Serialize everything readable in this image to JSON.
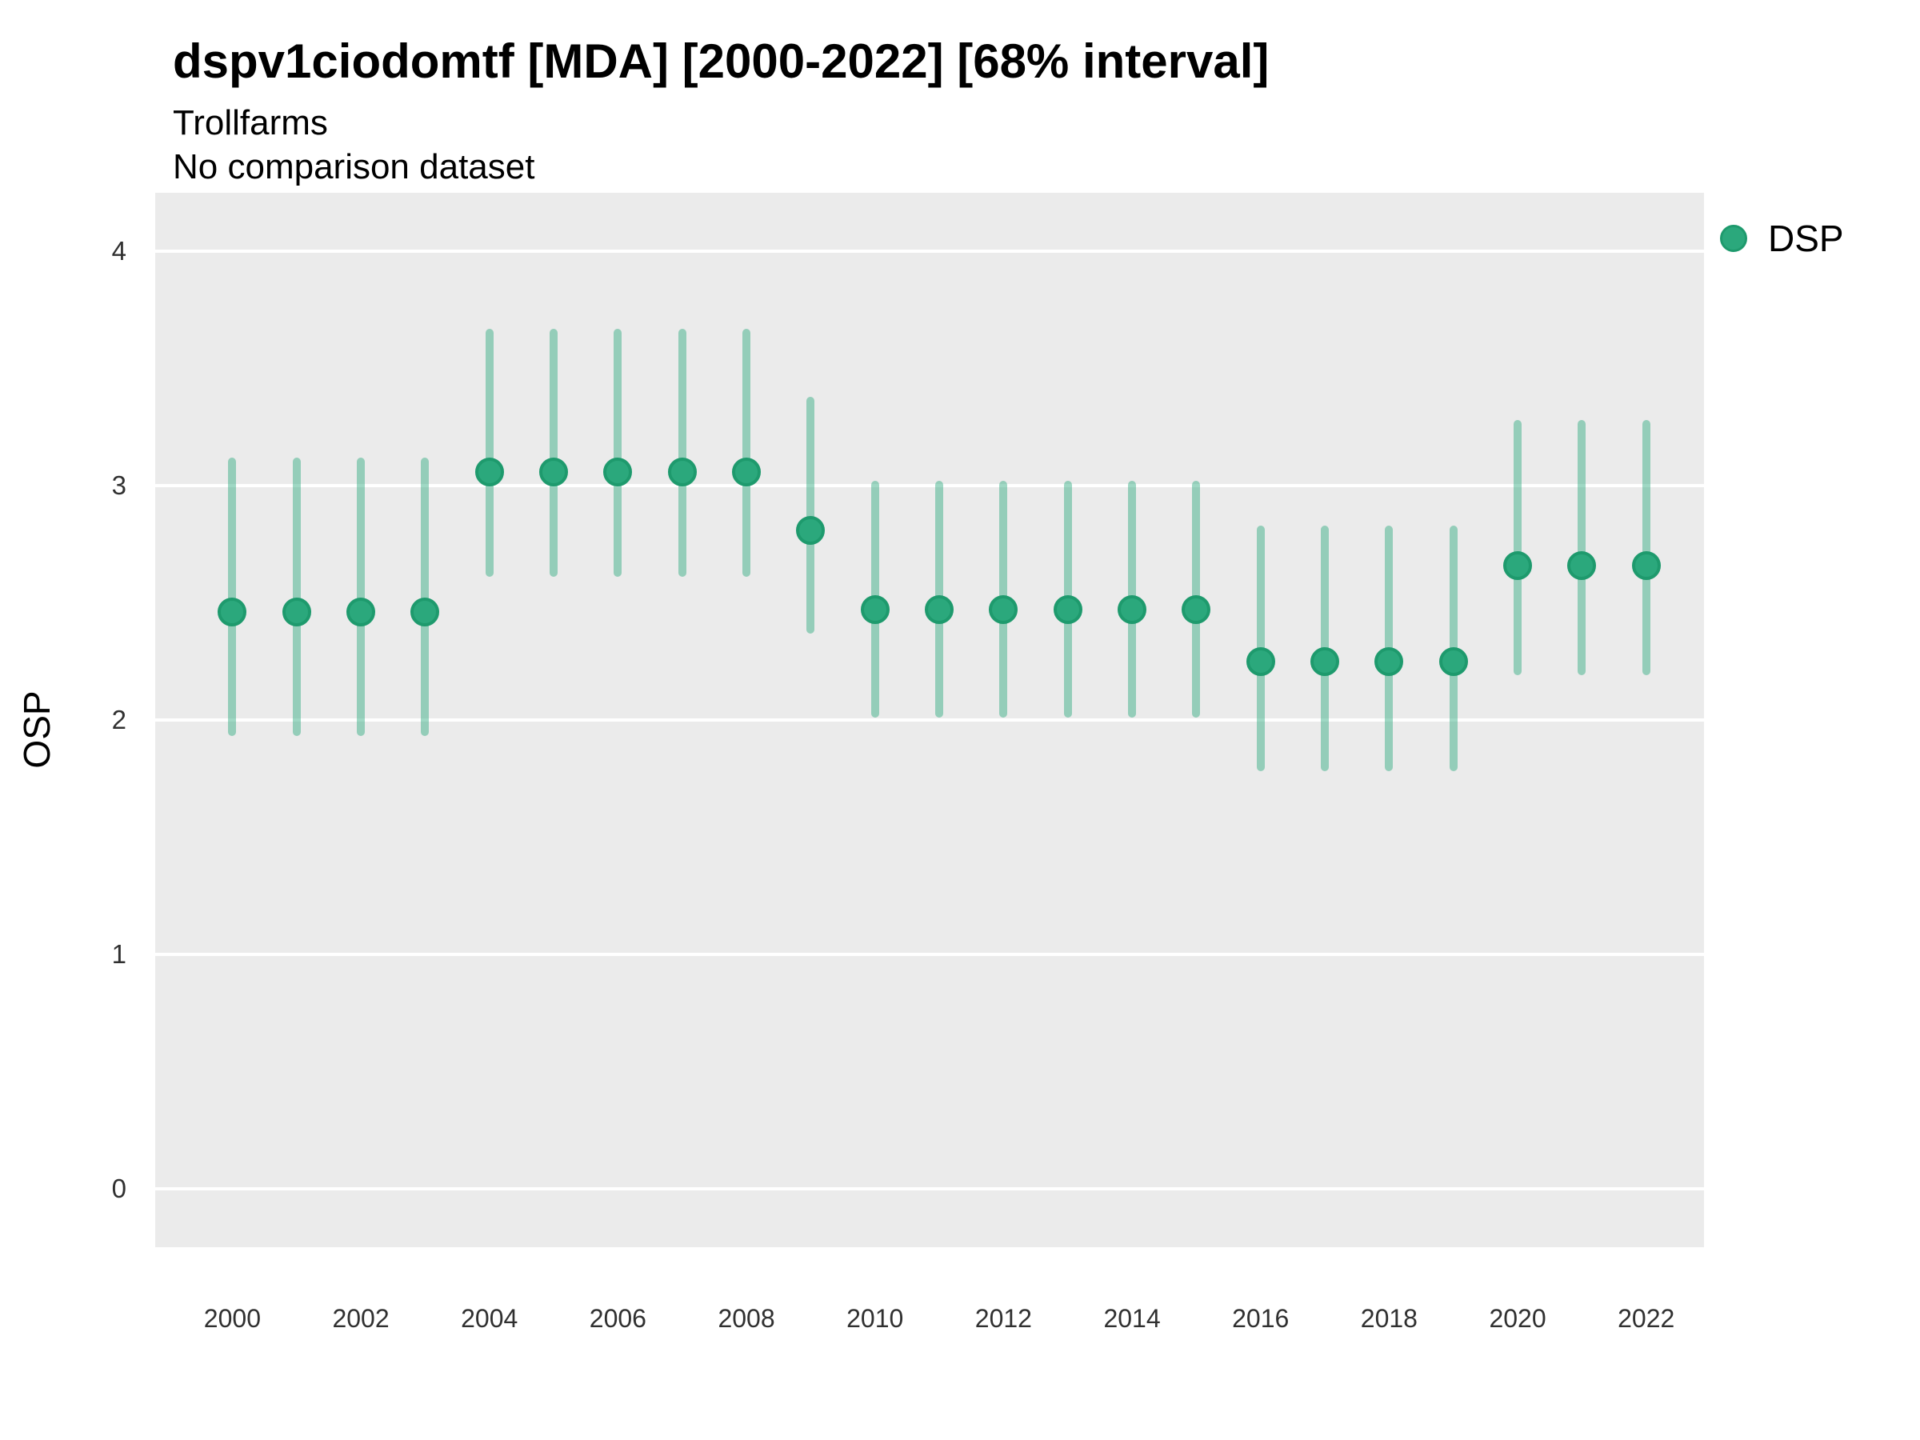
{
  "title": "dspv1ciodomtf [MDA] [2000-2022] [68% interval]",
  "subtitle": "Trollfarms",
  "comparison_note": "No comparison dataset",
  "y_axis_title": "OSP",
  "legend": {
    "label": "DSP",
    "position": "right"
  },
  "colors": {
    "point_fill": "#2ba87c",
    "point_stroke": "#1e9a6d",
    "interval_bar": "rgba(43,168,124,0.45)",
    "panel_background": "#ebebeb",
    "gridline": "#ffffff",
    "title_text": "#000000",
    "tick_text": "#303030"
  },
  "chart_data": {
    "type": "scatter",
    "title": "dspv1ciodomtf [MDA] [2000-2022] [68% interval]",
    "subtitle": "Trollfarms",
    "note": "No comparison dataset",
    "xlabel": "",
    "ylabel": "OSP",
    "interval_label": "68% interval",
    "grid": "horizontal-major-only",
    "legend_position": "right",
    "xlim": [
      1998.8,
      2022.9
    ],
    "ylim": [
      -0.25,
      4.25
    ],
    "x_ticks": [
      2000,
      2002,
      2004,
      2006,
      2008,
      2010,
      2012,
      2014,
      2016,
      2018,
      2020,
      2022
    ],
    "y_ticks": [
      0,
      1,
      2,
      3,
      4
    ],
    "x": [
      2000,
      2001,
      2002,
      2003,
      2004,
      2005,
      2006,
      2007,
      2008,
      2009,
      2010,
      2011,
      2012,
      2013,
      2014,
      2015,
      2016,
      2017,
      2018,
      2019,
      2020,
      2021,
      2022
    ],
    "series": [
      {
        "name": "DSP",
        "values": [
          2.46,
          2.46,
          2.46,
          2.46,
          3.06,
          3.06,
          3.06,
          3.06,
          3.06,
          2.81,
          2.47,
          2.47,
          2.47,
          2.47,
          2.47,
          2.47,
          2.25,
          2.25,
          2.25,
          2.25,
          2.66,
          2.66,
          2.66
        ],
        "lower": [
          1.93,
          1.93,
          1.93,
          1.93,
          2.61,
          2.61,
          2.61,
          2.61,
          2.61,
          2.37,
          2.01,
          2.01,
          2.01,
          2.01,
          2.01,
          2.01,
          1.78,
          1.78,
          1.78,
          1.78,
          2.19,
          2.19,
          2.19
        ],
        "upper": [
          3.12,
          3.12,
          3.12,
          3.12,
          3.67,
          3.67,
          3.67,
          3.67,
          3.67,
          3.38,
          3.02,
          3.02,
          3.02,
          3.02,
          3.02,
          3.02,
          2.83,
          2.83,
          2.83,
          2.83,
          3.28,
          3.28,
          3.28
        ]
      }
    ]
  }
}
